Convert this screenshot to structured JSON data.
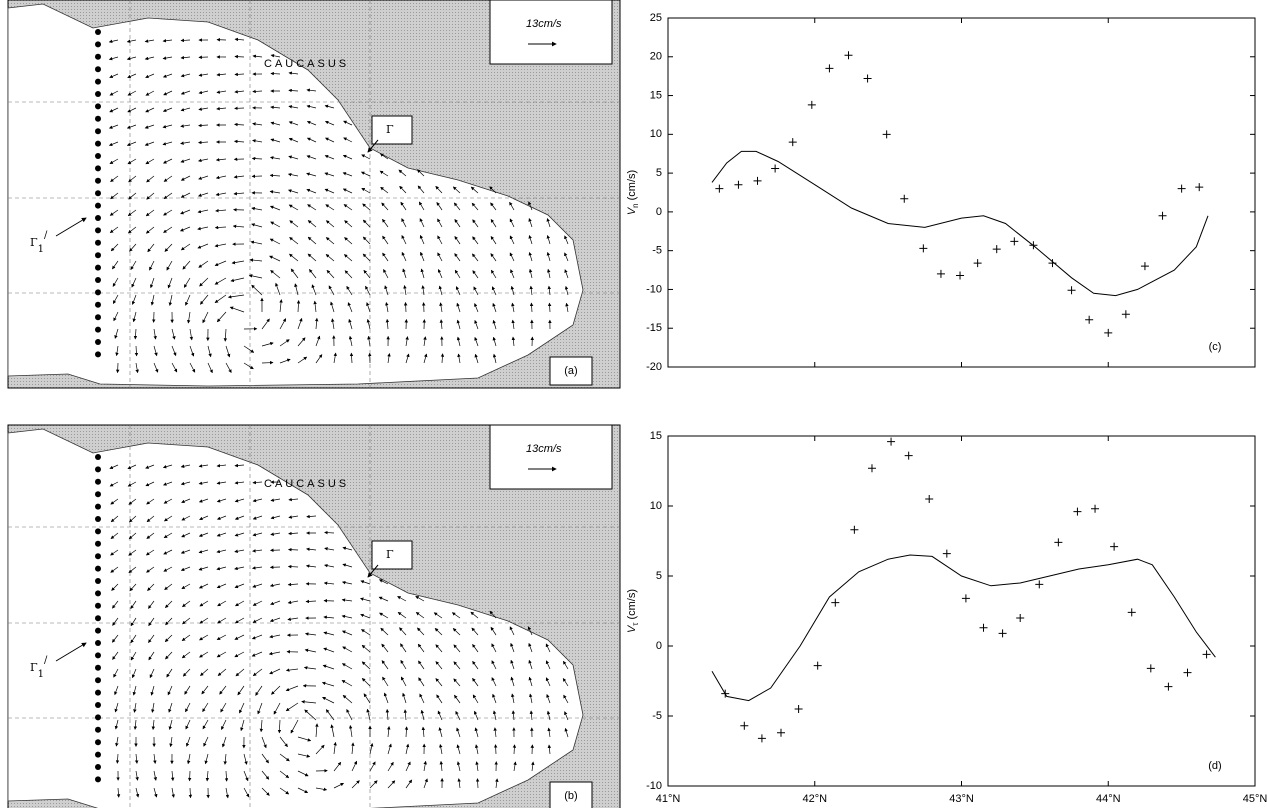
{
  "panels": [
    {
      "label": "(a)",
      "scale": "13cm/s",
      "region": "CAUCASUS",
      "gamma": "Γ",
      "gamma1": "Γ",
      "gamma1_sub": "1",
      "gamma1_sup": "/"
    },
    {
      "label": "(b)",
      "scale": "13cm/s",
      "region": "CAUCASUS",
      "gamma": "Γ",
      "gamma1": "Γ",
      "gamma1_sub": "1",
      "gamma1_sup": "/"
    }
  ],
  "chart_data": [
    {
      "type": "line",
      "label": "(c)",
      "ylabel": "V",
      "ylabel_sub": "n",
      "ylabel_unit": "(cm/s)",
      "xlim": [
        41,
        45
      ],
      "xticks": [
        41,
        42,
        43,
        44,
        45
      ],
      "ylim": [
        -20,
        25
      ],
      "yticks": [
        -20,
        -15,
        -10,
        -5,
        0,
        5,
        10,
        15,
        20,
        25
      ],
      "points": {
        "x": [
          41.35,
          41.48,
          41.61,
          41.73,
          41.85,
          41.98,
          42.1,
          42.23,
          42.36,
          42.49,
          42.61,
          42.74,
          42.86,
          42.99,
          43.11,
          43.24,
          43.36,
          43.49,
          43.62,
          43.75,
          43.87,
          44.0,
          44.12,
          44.25,
          44.37,
          44.5,
          44.62
        ],
        "values": [
          3.0,
          3.5,
          4.0,
          5.6,
          9.0,
          13.8,
          18.5,
          20.2,
          17.2,
          10.0,
          1.7,
          -4.7,
          -8.0,
          -8.2,
          -6.6,
          -4.8,
          -3.8,
          -4.3,
          -6.6,
          -10.1,
          -13.9,
          -15.6,
          -13.2,
          -7.0,
          -0.5,
          3.0,
          3.2
        ]
      },
      "curve": {
        "x": [
          41.3,
          41.4,
          41.5,
          41.6,
          41.75,
          42.0,
          42.25,
          42.5,
          42.75,
          43.0,
          43.15,
          43.3,
          43.5,
          43.75,
          43.9,
          44.05,
          44.2,
          44.45,
          44.6,
          44.68
        ],
        "values": [
          3.8,
          6.3,
          7.8,
          7.8,
          6.5,
          3.5,
          0.5,
          -1.5,
          -2.0,
          -0.8,
          -0.5,
          -1.5,
          -4.5,
          -8.5,
          -10.5,
          -10.8,
          -10.0,
          -7.5,
          -4.5,
          -0.5
        ]
      }
    },
    {
      "type": "line",
      "label": "(d)",
      "ylabel": "V",
      "ylabel_sub": "τ",
      "ylabel_unit": "(cm/s)",
      "xlim": [
        41,
        45
      ],
      "xticks": [
        {
          "value": 41,
          "label": "41°N"
        },
        {
          "value": 42,
          "label": "42°N"
        },
        {
          "value": 43,
          "label": "43°N"
        },
        {
          "value": 44,
          "label": "44°N"
        },
        {
          "value": 45,
          "label": "45°N"
        }
      ],
      "ylim": [
        -10,
        15
      ],
      "yticks": [
        -10,
        -5,
        0,
        5,
        10,
        15
      ],
      "points": {
        "x": [
          41.39,
          41.52,
          41.64,
          41.77,
          41.89,
          42.02,
          42.14,
          42.27,
          42.39,
          42.52,
          42.64,
          42.78,
          42.9,
          43.03,
          43.15,
          43.28,
          43.4,
          43.53,
          43.66,
          43.79,
          43.91,
          44.04,
          44.16,
          44.29,
          44.41,
          44.54,
          44.67
        ],
        "values": [
          -3.4,
          -5.7,
          -6.6,
          -6.2,
          -4.5,
          -1.4,
          3.1,
          8.3,
          12.7,
          14.6,
          13.6,
          10.5,
          6.6,
          3.4,
          1.3,
          0.9,
          2.0,
          4.4,
          7.4,
          9.6,
          9.8,
          7.1,
          2.4,
          -1.6,
          -2.9,
          -1.9,
          -0.6
        ]
      },
      "curve": {
        "x": [
          41.3,
          41.4,
          41.55,
          41.7,
          41.9,
          42.1,
          42.3,
          42.5,
          42.65,
          42.8,
          43.0,
          43.2,
          43.4,
          43.6,
          43.8,
          44.0,
          44.2,
          44.3,
          44.45,
          44.6,
          44.73
        ],
        "values": [
          -1.8,
          -3.6,
          -3.9,
          -3.0,
          0.0,
          3.5,
          5.3,
          6.2,
          6.5,
          6.4,
          5.0,
          4.3,
          4.5,
          5.0,
          5.5,
          5.8,
          6.2,
          5.8,
          3.5,
          1.0,
          -0.8
        ]
      }
    }
  ]
}
